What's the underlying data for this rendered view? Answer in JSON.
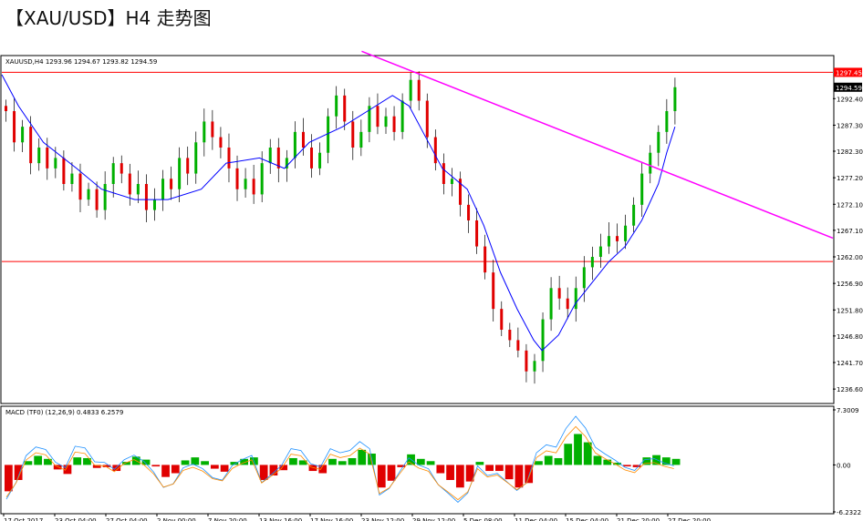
{
  "page": {
    "title": "【XAU/USD】H4 走势图"
  },
  "chart_data": [
    {
      "type": "candlestick",
      "header": "XAUUSD,H4  1293.96 1294.67 1293.82 1294.59",
      "ylim": [
        1234.0,
        1300.5
      ],
      "y_ticks": [
        "1292.40",
        "1287.30",
        "1282.30",
        "1277.20",
        "1272.10",
        "1267.10",
        "1262.00",
        "1256.90",
        "1251.80",
        "1246.80",
        "1241.70",
        "1236.60"
      ],
      "y_tick_values": [
        1292.4,
        1287.3,
        1282.3,
        1277.2,
        1272.1,
        1267.1,
        1262.0,
        1256.9,
        1251.8,
        1246.8,
        1241.7,
        1236.6
      ],
      "x_ticks": [
        "17 Oct 2017",
        "23 Oct 04:00",
        "27 Oct 04:00",
        "2 Nov 00:00",
        "7 Nov 20:00",
        "13 Nov 16:00",
        "17 Nov 16:00",
        "23 Nov 12:00",
        "29 Nov 12:00",
        "5 Dec 08:00",
        "11 Dec 04:00",
        "15 Dec 04:00",
        "21 Dec 20:00",
        "27 Dec 20:00"
      ],
      "resistance_level": {
        "value": 1297.45,
        "label": "1297.45",
        "color": "#ff0000"
      },
      "support_level": {
        "value": 1261.1,
        "color": "#ff0000"
      },
      "current_price": {
        "value": 1294.59,
        "label": "1294.59"
      },
      "trendline": {
        "color": "#ff00ff",
        "from": [
          0.433,
          1301.5
        ],
        "to": [
          1.0,
          1265.6
        ]
      },
      "moving_average": {
        "color": "#0000ff",
        "path": [
          [
            0.0,
            1297.0
          ],
          [
            0.02,
            1291
          ],
          [
            0.05,
            1284
          ],
          [
            0.09,
            1279
          ],
          [
            0.12,
            1275
          ],
          [
            0.16,
            1273
          ],
          [
            0.2,
            1273
          ],
          [
            0.24,
            1275
          ],
          [
            0.27,
            1280
          ],
          [
            0.31,
            1281
          ],
          [
            0.34,
            1279
          ],
          [
            0.37,
            1284
          ],
          [
            0.41,
            1287
          ],
          [
            0.44,
            1290
          ],
          [
            0.47,
            1293
          ],
          [
            0.49,
            1291
          ],
          [
            0.51,
            1285
          ],
          [
            0.53,
            1279
          ],
          [
            0.56,
            1275
          ],
          [
            0.58,
            1268
          ],
          [
            0.6,
            1259
          ],
          [
            0.62,
            1252
          ],
          [
            0.64,
            1246
          ],
          [
            0.65,
            1244
          ],
          [
            0.67,
            1247
          ],
          [
            0.69,
            1253
          ],
          [
            0.71,
            1257
          ],
          [
            0.73,
            1261
          ],
          [
            0.75,
            1264
          ],
          [
            0.77,
            1269
          ],
          [
            0.79,
            1276
          ],
          [
            0.8,
            1282
          ],
          [
            0.81,
            1287
          ]
        ]
      },
      "candles": [
        1290,
        1284,
        1287,
        1280,
        1283,
        1279,
        1281,
        1276,
        1278,
        1273,
        1275,
        1271,
        1276,
        1280,
        1278,
        1274,
        1276,
        1271,
        1273,
        1277,
        1275,
        1281,
        1278,
        1284,
        1288,
        1285,
        1283,
        1279,
        1275,
        1277,
        1274,
        1280,
        1283,
        1279,
        1281,
        1286,
        1283,
        1279,
        1282,
        1289,
        1293,
        1288,
        1283,
        1286,
        1291,
        1287,
        1289,
        1286,
        1292,
        1296,
        1292,
        1285,
        1280,
        1276,
        1277,
        1272,
        1269,
        1264,
        1259,
        1252,
        1248,
        1246,
        1244,
        1240,
        1242,
        1250,
        1256,
        1254,
        1252,
        1256,
        1260,
        1262,
        1264,
        1266,
        1265,
        1268,
        1272,
        1278,
        1282,
        1286,
        1290,
        1294.59
      ],
      "macd": {
        "label": "MACD (TF0) (12,26,9) 0.4833 6.2579",
        "ylim": [
          -6.2322,
          7.3009
        ],
        "ticks": [
          "7.3009",
          "0.00",
          "-6.2322"
        ],
        "tick_values": [
          7.3009,
          0.0,
          -6.2322
        ],
        "histogram": [
          -3.5,
          -2.0,
          0.5,
          1.2,
          0.8,
          -0.6,
          -1.2,
          1.0,
          0.9,
          -0.4,
          -0.3,
          -0.8,
          0.4,
          1.1,
          0.7,
          -0.2,
          -1.6,
          -1.1,
          0.6,
          1.0,
          0.5,
          -0.5,
          -0.9,
          0.4,
          0.8,
          1.0,
          -2.0,
          -1.4,
          -0.7,
          0.9,
          0.6,
          -0.8,
          -1.1,
          0.8,
          0.5,
          0.9,
          2.0,
          1.5,
          -3.0,
          -2.1,
          -0.3,
          1.4,
          0.8,
          0.5,
          -1.1,
          -2.0,
          -3.0,
          -2.2,
          0.4,
          -0.8,
          -0.8,
          -1.9,
          -3.0,
          -2.4,
          0.5,
          1.2,
          0.9,
          2.8,
          4.1,
          3.0,
          1.2,
          0.7,
          0.3,
          -0.2,
          -0.3,
          1.0,
          1.3,
          1.0,
          0.8
        ],
        "macd_line_color": "#1e90ff",
        "signal_line_color": "#ff8c00"
      },
      "colors": {
        "bull": "#00b000",
        "bear": "#e00000",
        "axis": "#000000"
      }
    }
  ]
}
